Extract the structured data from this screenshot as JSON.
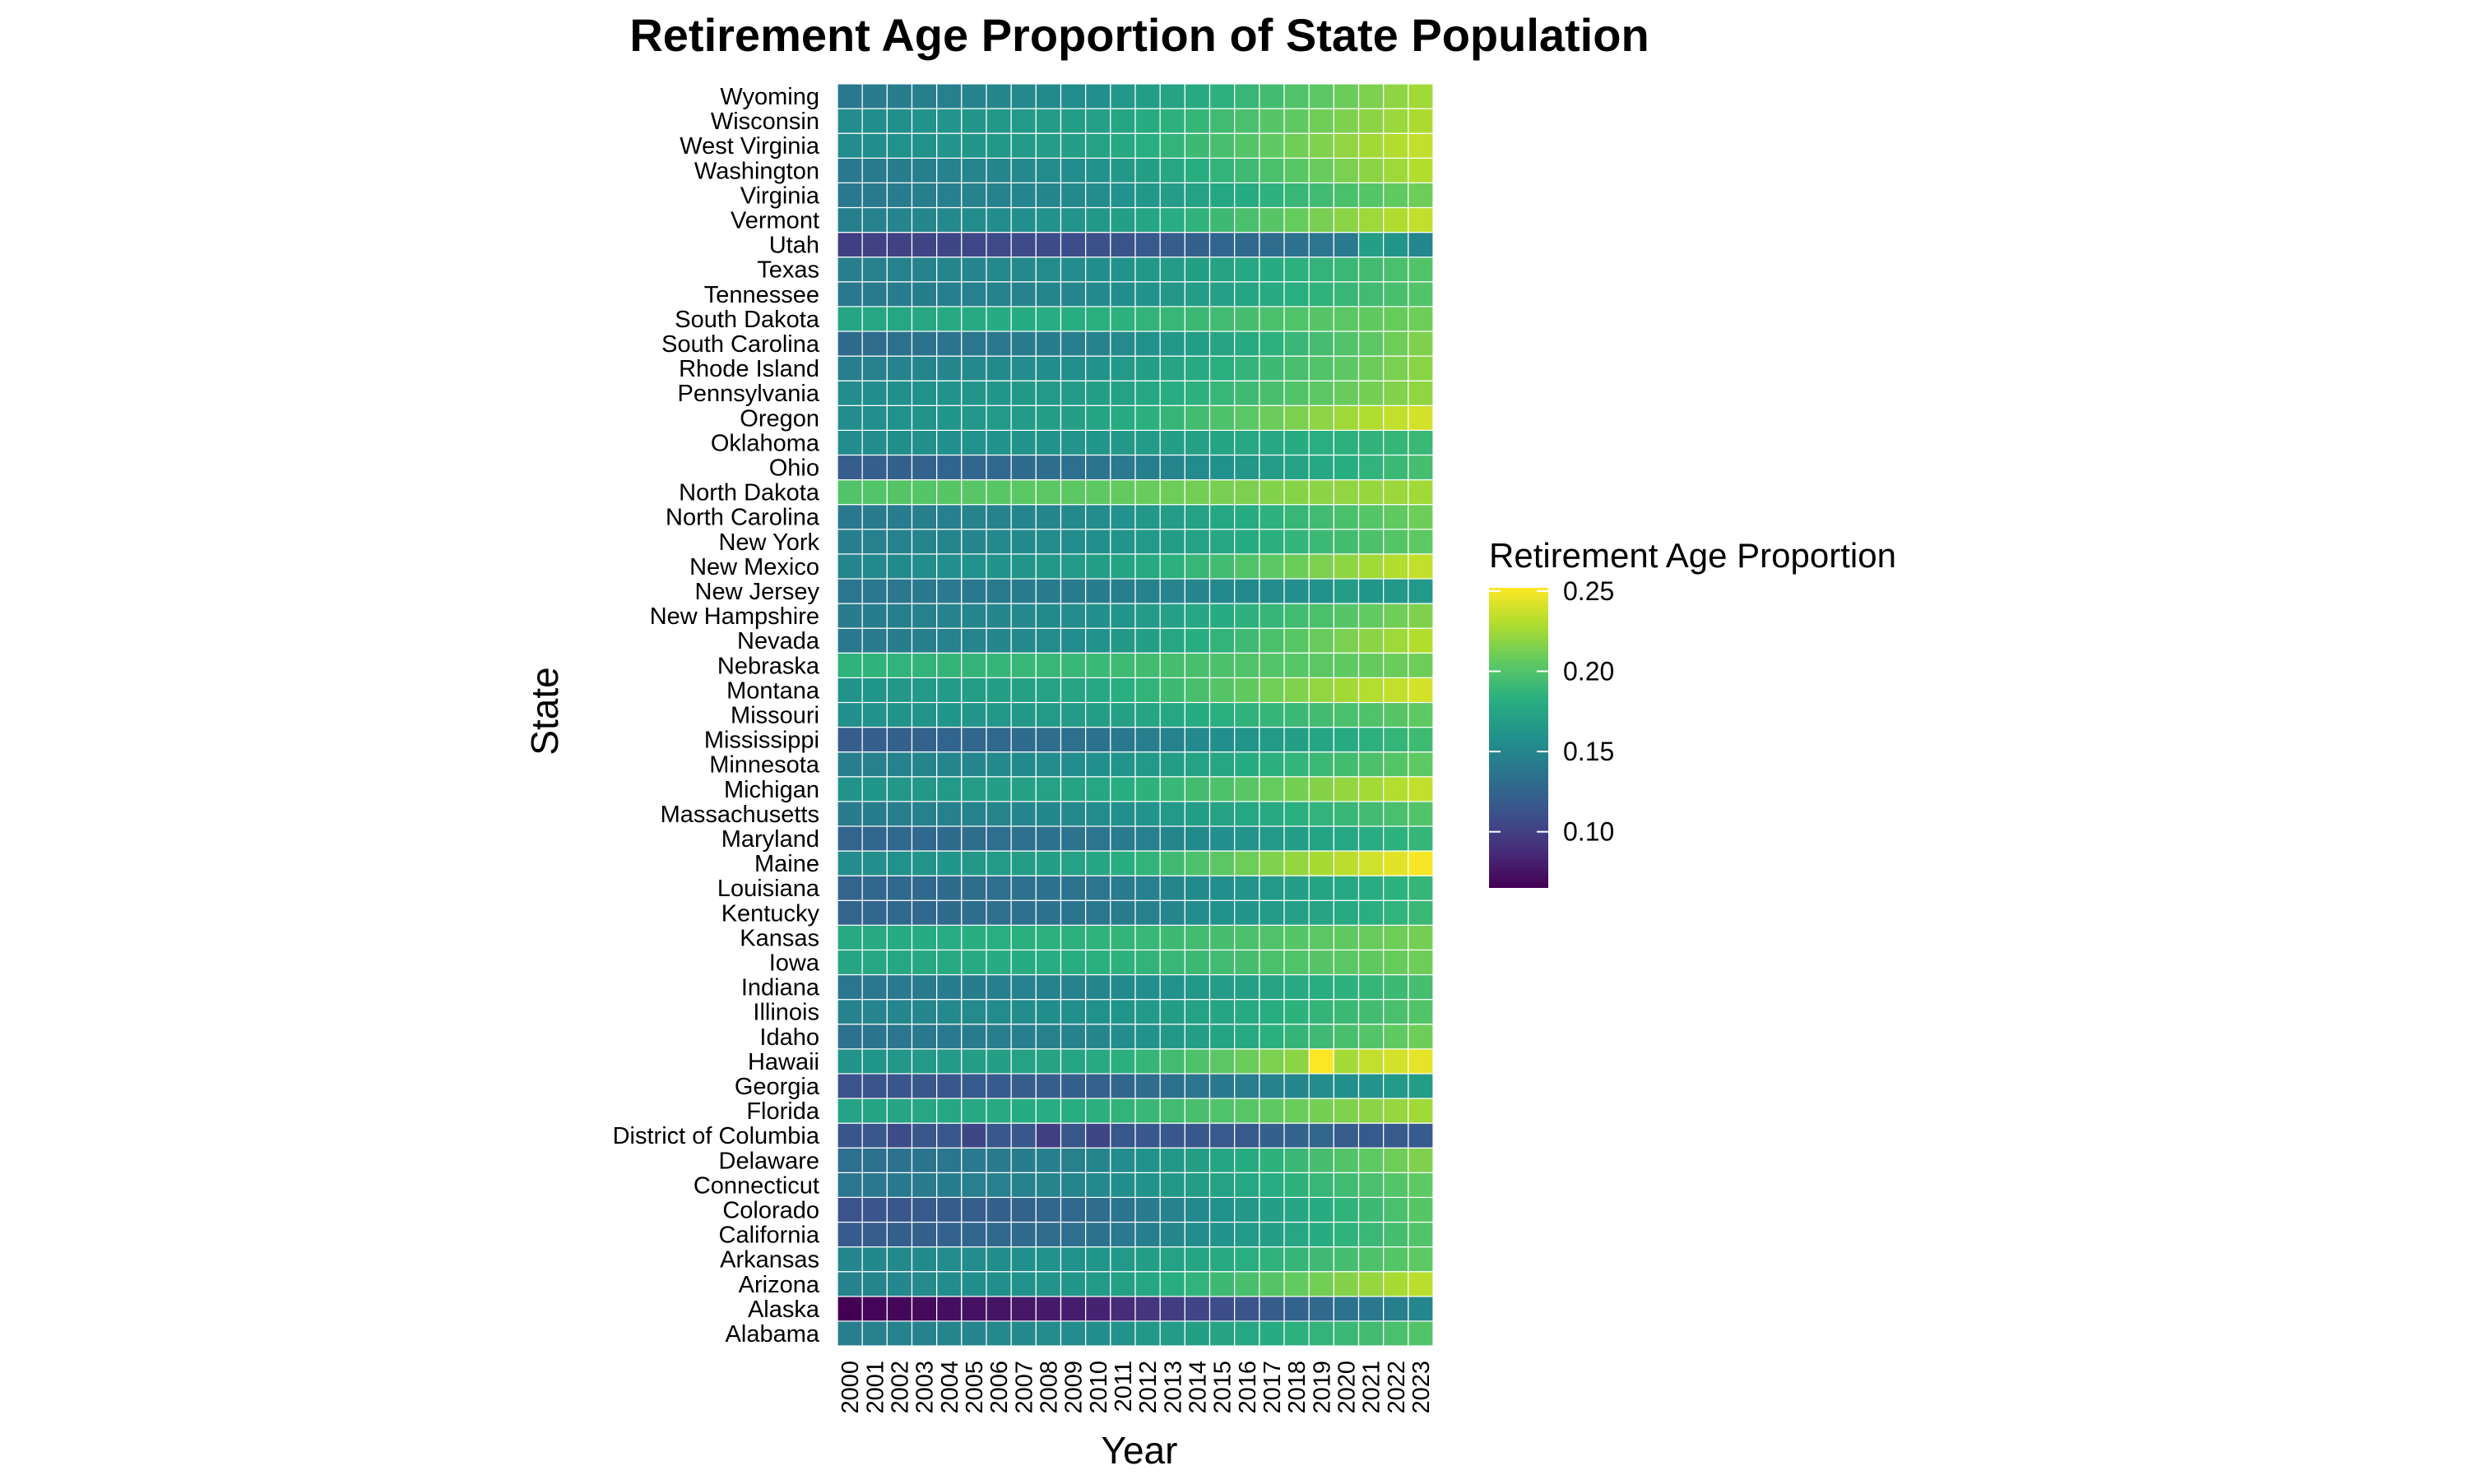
{
  "chart_data": {
    "type": "heatmap",
    "title": "Retirement Age Proportion of State Population",
    "xlabel": "Year",
    "ylabel": "State",
    "x": [
      "2000",
      "2001",
      "2002",
      "2003",
      "2004",
      "2005",
      "2006",
      "2007",
      "2008",
      "2009",
      "2010",
      "2011",
      "2012",
      "2013",
      "2014",
      "2015",
      "2016",
      "2017",
      "2018",
      "2019",
      "2020",
      "2021",
      "2022",
      "2023"
    ],
    "y": [
      "Alabama",
      "Alaska",
      "Arizona",
      "Arkansas",
      "California",
      "Colorado",
      "Connecticut",
      "Delaware",
      "District of Columbia",
      "Florida",
      "Georgia",
      "Hawaii",
      "Idaho",
      "Illinois",
      "Indiana",
      "Iowa",
      "Kansas",
      "Kentucky",
      "Louisiana",
      "Maine",
      "Maryland",
      "Massachusetts",
      "Michigan",
      "Minnesota",
      "Mississippi",
      "Missouri",
      "Montana",
      "Nebraska",
      "Nevada",
      "New Hampshire",
      "New Jersey",
      "New Mexico",
      "New York",
      "North Carolina",
      "North Dakota",
      "Ohio",
      "Oklahoma",
      "Oregon",
      "Pennsylvania",
      "Rhode Island",
      "South Carolina",
      "South Dakota",
      "Tennessee",
      "Texas",
      "Utah",
      "Vermont",
      "Virginia",
      "Washington",
      "West Virginia",
      "Wisconsin",
      "Wyoming"
    ],
    "value_model_note": "",
    "rows": [
      {
        "state": "Alabama",
        "start": 0.145,
        "end": 0.2
      },
      {
        "state": "Alaska",
        "start": 0.065,
        "end": 0.15
      },
      {
        "state": "Arizona",
        "start": 0.148,
        "end": 0.232
      },
      {
        "state": "Arkansas",
        "start": 0.15,
        "end": 0.205
      },
      {
        "state": "California",
        "start": 0.118,
        "end": 0.2
      },
      {
        "state": "Colorado",
        "start": 0.112,
        "end": 0.202
      },
      {
        "state": "Connecticut",
        "start": 0.138,
        "end": 0.205
      },
      {
        "state": "Delaware",
        "start": 0.132,
        "end": 0.215
      },
      {
        "state": "District of Columbia",
        "start": 0.115,
        "end": 0.118
      },
      {
        "state": "Florida",
        "start": 0.172,
        "end": 0.225
      },
      {
        "state": "Georgia",
        "start": 0.112,
        "end": 0.168
      },
      {
        "state": "Hawaii",
        "start": 0.16,
        "end": 0.245
      },
      {
        "state": "Idaho",
        "start": 0.135,
        "end": 0.21
      },
      {
        "state": "Illinois",
        "start": 0.148,
        "end": 0.2
      },
      {
        "state": "Indiana",
        "start": 0.138,
        "end": 0.195
      },
      {
        "state": "Iowa",
        "start": 0.175,
        "end": 0.21
      },
      {
        "state": "Kansas",
        "start": 0.178,
        "end": 0.212
      },
      {
        "state": "Kentucky",
        "start": 0.125,
        "end": 0.19
      },
      {
        "state": "Louisiana",
        "start": 0.125,
        "end": 0.188
      },
      {
        "state": "Maine",
        "start": 0.155,
        "end": 0.25
      },
      {
        "state": "Maryland",
        "start": 0.125,
        "end": 0.188
      },
      {
        "state": "Massachusetts",
        "start": 0.142,
        "end": 0.2
      },
      {
        "state": "Michigan",
        "start": 0.16,
        "end": 0.235
      },
      {
        "state": "Minnesota",
        "start": 0.145,
        "end": 0.205
      },
      {
        "state": "Mississippi",
        "start": 0.12,
        "end": 0.192
      },
      {
        "state": "Missouri",
        "start": 0.158,
        "end": 0.205
      },
      {
        "state": "Montana",
        "start": 0.16,
        "end": 0.24
      },
      {
        "state": "Nebraska",
        "start": 0.185,
        "end": 0.21
      },
      {
        "state": "Nevada",
        "start": 0.14,
        "end": 0.23
      },
      {
        "state": "New Hampshire",
        "start": 0.142,
        "end": 0.215
      },
      {
        "state": "New Jersey",
        "start": 0.138,
        "end": 0.165
      },
      {
        "state": "New Mexico",
        "start": 0.15,
        "end": 0.235
      },
      {
        "state": "New York",
        "start": 0.145,
        "end": 0.205
      },
      {
        "state": "North Carolina",
        "start": 0.14,
        "end": 0.21
      },
      {
        "state": "North Dakota",
        "start": 0.2,
        "end": 0.225
      },
      {
        "state": "Ohio",
        "start": 0.12,
        "end": 0.195
      },
      {
        "state": "Oklahoma",
        "start": 0.155,
        "end": 0.19
      },
      {
        "state": "Oregon",
        "start": 0.155,
        "end": 0.24
      },
      {
        "state": "Pennsylvania",
        "start": 0.155,
        "end": 0.22
      },
      {
        "state": "Rhode Island",
        "start": 0.145,
        "end": 0.218
      },
      {
        "state": "South Carolina",
        "start": 0.13,
        "end": 0.215
      },
      {
        "state": "South Dakota",
        "start": 0.175,
        "end": 0.21
      },
      {
        "state": "Tennessee",
        "start": 0.14,
        "end": 0.2
      },
      {
        "state": "Texas",
        "start": 0.145,
        "end": 0.2
      },
      {
        "state": "Utah",
        "start": 0.1,
        "end": 0.15
      },
      {
        "state": "Vermont",
        "start": 0.145,
        "end": 0.235
      },
      {
        "state": "Virginia",
        "start": 0.14,
        "end": 0.21
      },
      {
        "state": "Washington",
        "start": 0.14,
        "end": 0.23
      },
      {
        "state": "West Virginia",
        "start": 0.155,
        "end": 0.235
      },
      {
        "state": "Wisconsin",
        "start": 0.155,
        "end": 0.228
      },
      {
        "state": "Wyoming",
        "start": 0.14,
        "end": 0.225
      }
    ],
    "overrides": [
      {
        "state": "Hawaii",
        "year": "2019",
        "value": 0.252
      },
      {
        "state": "Hawaii",
        "year": "2020",
        "value": 0.226
      },
      {
        "state": "Utah",
        "year": "2021",
        "value": 0.17
      },
      {
        "state": "Utah",
        "year": "2022",
        "value": 0.162
      },
      {
        "state": "New Jersey",
        "year": "2020",
        "value": 0.168
      },
      {
        "state": "District of Columbia",
        "year": "2002",
        "value": 0.108
      },
      {
        "state": "District of Columbia",
        "year": "2005",
        "value": 0.104
      },
      {
        "state": "District of Columbia",
        "year": "2008",
        "value": 0.1
      },
      {
        "state": "District of Columbia",
        "year": "2010",
        "value": 0.104
      },
      {
        "state": "District of Columbia",
        "year": "2017",
        "value": 0.122
      },
      {
        "state": "District of Columbia",
        "year": "2018",
        "value": 0.124
      },
      {
        "state": "District of Columbia",
        "year": "2019",
        "value": 0.126
      },
      {
        "state": "District of Columbia",
        "year": "2020",
        "value": 0.12
      }
    ],
    "legend": {
      "title": "Retirement Age Proportion",
      "min": 0.065,
      "max": 0.252,
      "ticks": [
        "0.10",
        "0.15",
        "0.20",
        "0.25"
      ],
      "colorscale": "viridis",
      "placement": "right"
    }
  }
}
